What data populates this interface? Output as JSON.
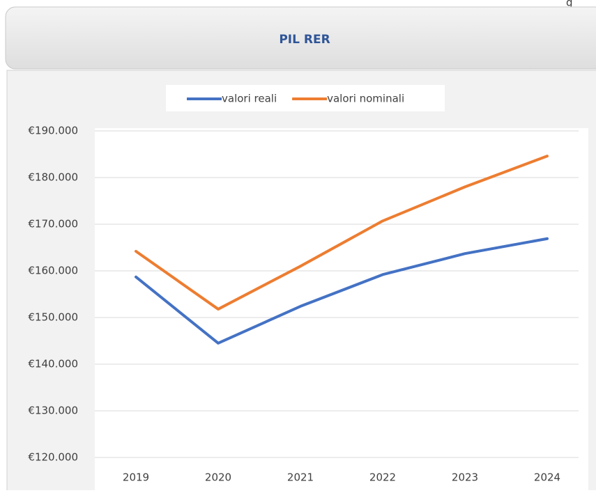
{
  "corner_text": "g",
  "chart_data": {
    "type": "line",
    "title": "PIL RER",
    "categories": [
      "2019",
      "2020",
      "2021",
      "2022",
      "2023",
      "2024"
    ],
    "series": [
      {
        "name": "valori reali",
        "color": "#4472c4",
        "values": [
          158700,
          144500,
          152400,
          159200,
          163700,
          166900
        ]
      },
      {
        "name": "valori nominali",
        "color": "#ed7d31",
        "values": [
          164200,
          151800,
          161000,
          170700,
          178000,
          184600
        ]
      }
    ],
    "ylim": [
      120000,
      190000
    ],
    "yticks": [
      {
        "value": 120000,
        "label": "€120.000"
      },
      {
        "value": 130000,
        "label": "€130.000"
      },
      {
        "value": 140000,
        "label": "€140.000"
      },
      {
        "value": 150000,
        "label": "€150.000"
      },
      {
        "value": 160000,
        "label": "€160.000"
      },
      {
        "value": 170000,
        "label": "€170.000"
      },
      {
        "value": 180000,
        "label": "€180.000"
      },
      {
        "value": 190000,
        "label": "€190.000"
      }
    ],
    "grid": true,
    "legend": "top"
  }
}
